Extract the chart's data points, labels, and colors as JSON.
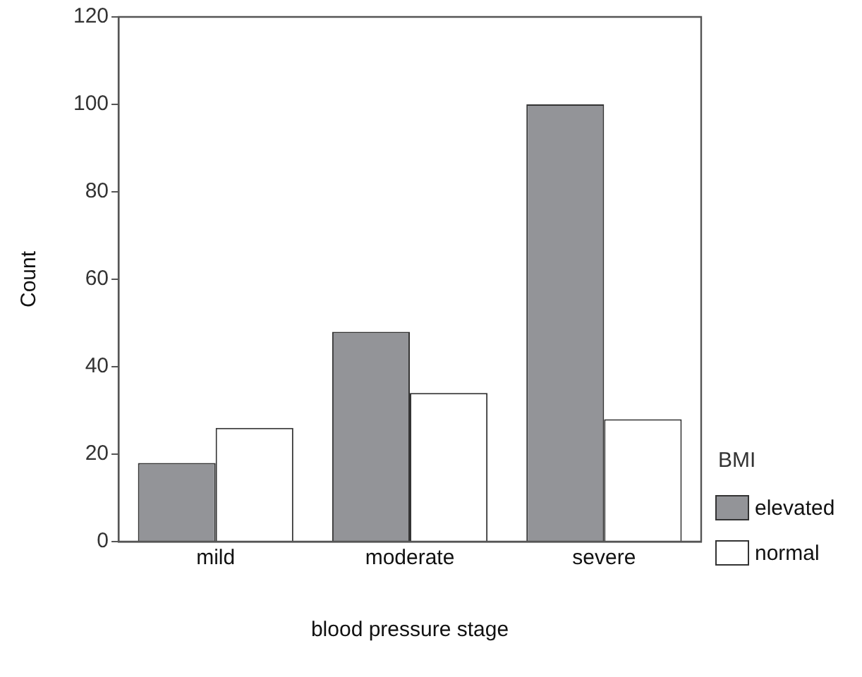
{
  "chart_data": {
    "type": "bar",
    "xlabel": "blood pressure stage",
    "ylabel": "Count",
    "legend_title": "BMI",
    "categories": [
      "mild",
      "moderate",
      "severe"
    ],
    "series": [
      {
        "name": "elevated",
        "color": "#939498",
        "values": [
          18,
          48,
          100
        ]
      },
      {
        "name": "normal",
        "color": "#ffffff",
        "values": [
          26,
          34,
          28
        ]
      }
    ],
    "ylim": [
      0,
      120
    ],
    "yticks": [
      0,
      20,
      40,
      60,
      80,
      100,
      120
    ],
    "legend": "right"
  }
}
